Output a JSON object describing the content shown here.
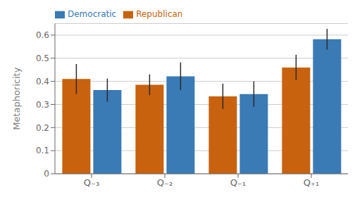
{
  "chart_data": {
    "type": "bar",
    "categories": [
      "Q₋₃",
      "Q₋₂",
      "Q₋₁",
      "Q₊₁"
    ],
    "series": [
      {
        "name": "Republican",
        "color": "#c8620e",
        "values": [
          0.41,
          0.385,
          0.335,
          0.46
        ],
        "errors": [
          0.065,
          0.045,
          0.055,
          0.055
        ]
      },
      {
        "name": "Democratic",
        "color": "#3a7ab5",
        "values": [
          0.362,
          0.422,
          0.345,
          0.582
        ],
        "errors": [
          0.05,
          0.06,
          0.055,
          0.045
        ]
      }
    ],
    "ylabel": "Metaphoricity",
    "ylim": [
      0.0,
      0.65
    ],
    "yticks": [
      0.0,
      0.1,
      0.2,
      0.3,
      0.4,
      0.5,
      0.6
    ],
    "grid": true,
    "legend": "upper left"
  }
}
